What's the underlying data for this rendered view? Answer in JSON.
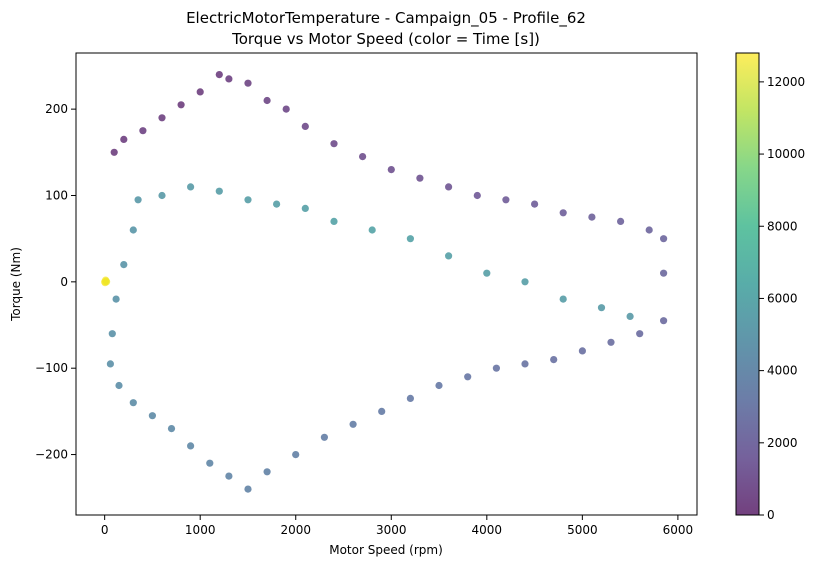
{
  "chart_data": {
    "type": "scatter",
    "title": "ElectricMotorTemperature - Campaign_05 - Profile_62",
    "subtitle": "Torque vs Motor Speed (color = Time [s])",
    "xlabel": "Motor Speed (rpm)",
    "ylabel": "Torque (Nm)",
    "xlim": [
      -300,
      6200
    ],
    "ylim": [
      -270,
      265
    ],
    "xticks": [
      0,
      1000,
      2000,
      3000,
      4000,
      5000,
      6000
    ],
    "xtick_labels": [
      "0",
      "1000",
      "2000",
      "3000",
      "4000",
      "5000",
      "6000"
    ],
    "yticks": [
      -200,
      -100,
      0,
      100,
      200
    ],
    "ytick_labels": [
      "−200",
      "−100",
      "0",
      "100",
      "200"
    ],
    "grid": false,
    "colormap": "viridis",
    "marker_alpha": 0.7,
    "colorbar": {
      "range": [
        0,
        12800
      ],
      "ticks": [
        0,
        2000,
        4000,
        6000,
        8000,
        10000,
        12000
      ],
      "tick_labels": [
        "0",
        "2000",
        "4000",
        "6000",
        "8000",
        "10000",
        "12000"
      ]
    },
    "points": [
      [
        0,
        0,
        12700
      ],
      [
        10,
        2,
        12650
      ],
      [
        5,
        -1,
        12600
      ],
      [
        15,
        1,
        12550
      ],
      [
        20,
        0,
        12500
      ],
      [
        1200,
        240,
        300
      ],
      [
        1300,
        235,
        400
      ],
      [
        1500,
        230,
        500
      ],
      [
        1000,
        220,
        250
      ],
      [
        800,
        205,
        200
      ],
      [
        600,
        190,
        350
      ],
      [
        400,
        175,
        450
      ],
      [
        200,
        165,
        300
      ],
      [
        100,
        150,
        250
      ],
      [
        1700,
        210,
        600
      ],
      [
        1900,
        200,
        700
      ],
      [
        2100,
        180,
        800
      ],
      [
        2400,
        160,
        900
      ],
      [
        2700,
        145,
        1000
      ],
      [
        3000,
        130,
        1100
      ],
      [
        3300,
        120,
        1200
      ],
      [
        3600,
        110,
        1300
      ],
      [
        3900,
        100,
        1500
      ],
      [
        4200,
        95,
        1600
      ],
      [
        4500,
        90,
        1700
      ],
      [
        4800,
        80,
        1800
      ],
      [
        5100,
        75,
        1900
      ],
      [
        5400,
        70,
        2000
      ],
      [
        5700,
        60,
        2100
      ],
      [
        5850,
        50,
        2200
      ],
      [
        5850,
        10,
        2300
      ],
      [
        5850,
        -45,
        2400
      ],
      [
        5600,
        -60,
        2500
      ],
      [
        5300,
        -70,
        2600
      ],
      [
        5000,
        -80,
        2700
      ],
      [
        4700,
        -90,
        2800
      ],
      [
        4400,
        -95,
        2900
      ],
      [
        4100,
        -100,
        3000
      ],
      [
        3800,
        -110,
        3100
      ],
      [
        3500,
        -120,
        3200
      ],
      [
        3200,
        -135,
        3300
      ],
      [
        2900,
        -150,
        3400
      ],
      [
        2600,
        -165,
        3500
      ],
      [
        2300,
        -180,
        3600
      ],
      [
        2000,
        -200,
        3700
      ],
      [
        1700,
        -220,
        3800
      ],
      [
        1500,
        -240,
        3900
      ],
      [
        1300,
        -225,
        4000
      ],
      [
        1100,
        -210,
        4100
      ],
      [
        900,
        -190,
        4200
      ],
      [
        700,
        -170,
        4300
      ],
      [
        500,
        -155,
        4400
      ],
      [
        300,
        -140,
        4500
      ],
      [
        150,
        -120,
        4600
      ],
      [
        60,
        -95,
        4700
      ],
      [
        80,
        -60,
        4800
      ],
      [
        120,
        -20,
        4900
      ],
      [
        200,
        20,
        5000
      ],
      [
        300,
        60,
        5100
      ],
      [
        350,
        95,
        5200
      ],
      [
        600,
        100,
        5300
      ],
      [
        900,
        110,
        5400
      ],
      [
        1200,
        105,
        5500
      ],
      [
        1500,
        95,
        5600
      ],
      [
        1800,
        90,
        5700
      ],
      [
        2100,
        85,
        5800
      ],
      [
        2400,
        70,
        5900
      ],
      [
        2800,
        60,
        6000
      ],
      [
        3200,
        50,
        5900
      ],
      [
        3600,
        30,
        5800
      ],
      [
        4000,
        10,
        5700
      ],
      [
        4400,
        0,
        5600
      ],
      [
        4800,
        -20,
        5500
      ],
      [
        5200,
        -30,
        5400
      ],
      [
        5500,
        -40,
        5300
      ]
    ]
  }
}
